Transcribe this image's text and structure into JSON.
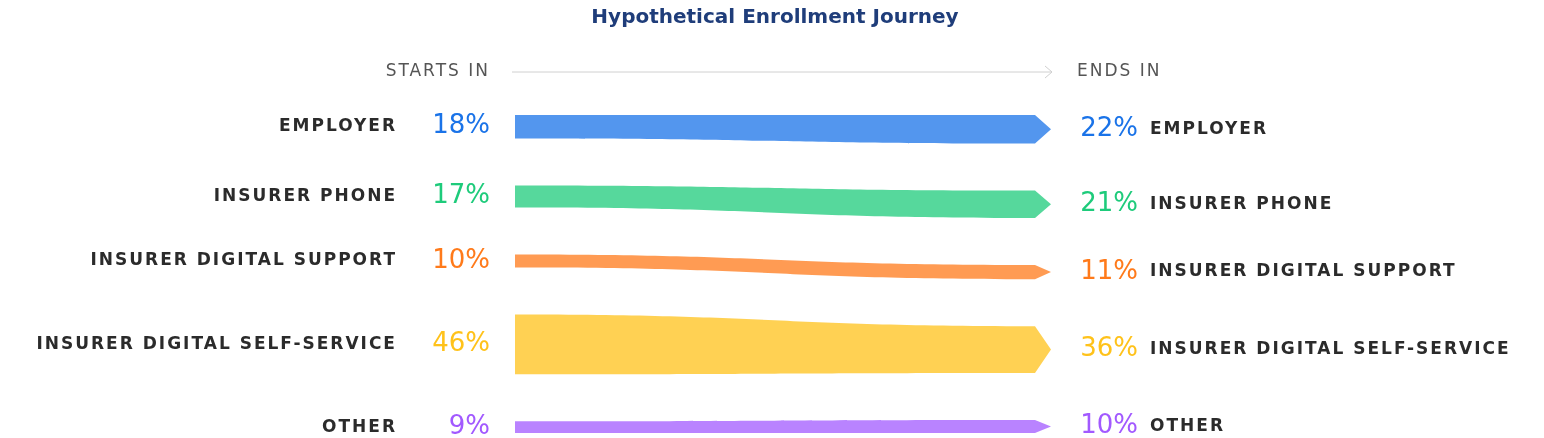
{
  "chart_data": {
    "type": "other",
    "title": "Hypothetical Enrollment Journey",
    "categories": [
      "EMPLOYER",
      "INSURER PHONE",
      "INSURER DIGITAL SUPPORT",
      "INSURER DIGITAL SELF-SERVICE",
      "OTHER"
    ],
    "colors": [
      "#1a73e8",
      "#1ecb7b",
      "#ff7a1a",
      "#ffc21a",
      "#a259ff"
    ],
    "series": [
      {
        "name": "STARTS IN",
        "values": [
          18,
          17,
          10,
          46,
          9
        ],
        "value_labels": [
          "18%",
          "17%",
          "10%",
          "46%",
          "9%"
        ]
      },
      {
        "name": "ENDS IN",
        "values": [
          22,
          21,
          11,
          36,
          10
        ],
        "value_labels": [
          "22%",
          "21%",
          "11%",
          "36%",
          "10%"
        ]
      }
    ]
  }
}
